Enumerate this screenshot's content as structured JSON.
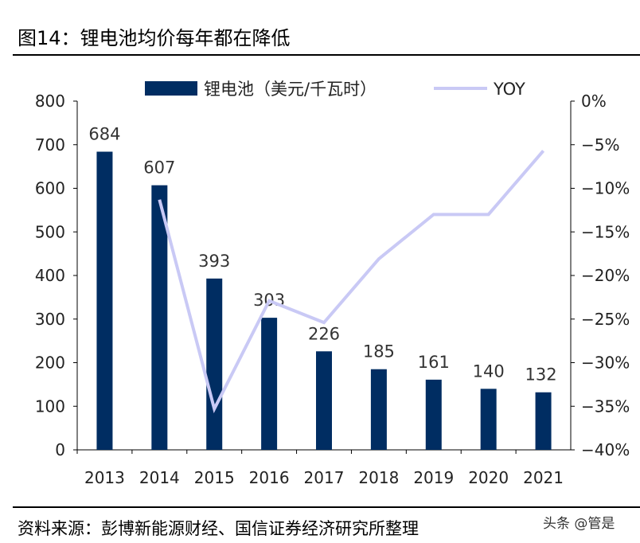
{
  "title": "图14：锂电池均价每年都在降低",
  "source": "资料来源：彭博新能源财经、国信证券经济研究所整理",
  "watermark": "头条 @管是",
  "chart_data": {
    "type": "bar",
    "categories": [
      "2013",
      "2014",
      "2015",
      "2016",
      "2017",
      "2018",
      "2019",
      "2020",
      "2021"
    ],
    "series": [
      {
        "name": "锂电池（美元/千瓦时）",
        "type": "bar",
        "axis": "left",
        "color": "#002D62",
        "values": [
          684,
          607,
          393,
          303,
          226,
          185,
          161,
          140,
          132
        ]
      },
      {
        "name": "YOY",
        "type": "line",
        "axis": "right",
        "color": "#C9C9F5",
        "values": [
          null,
          -11.3,
          -35.3,
          -22.9,
          -25.4,
          -18.1,
          -13.0,
          -13.0,
          -5.7
        ]
      }
    ],
    "ylim": [
      0,
      800
    ],
    "yticks": [
      "0",
      "100",
      "200",
      "300",
      "400",
      "500",
      "600",
      "700",
      "800"
    ],
    "y2lim": [
      -40,
      0
    ],
    "y2ticks": [
      "-40%",
      "-35%",
      "-30%",
      "-25%",
      "-20%",
      "-15%",
      "-10%",
      "-5%",
      "0%"
    ],
    "legend": "top",
    "grid": false
  }
}
